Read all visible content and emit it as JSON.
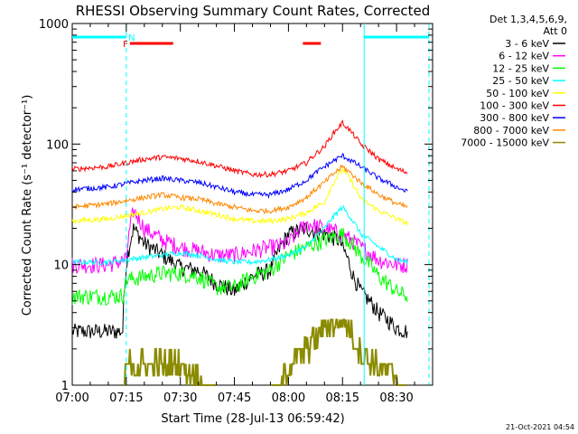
{
  "chart_data": {
    "type": "line",
    "title": "RHESSI Observing Summary Count Rates, Corrected",
    "xlabel": "Start Time (28-Jul-13 06:59:42)",
    "ylabel": "Corrected Count Rate (s⁻¹ detector⁻¹)",
    "yscale": "log",
    "xlim_minutes": [
      0,
      100
    ],
    "ylim": [
      1,
      1000
    ],
    "x_ticks": [
      {
        "minute": 0,
        "label": "07:00"
      },
      {
        "minute": 15,
        "label": "07:15"
      },
      {
        "minute": 30,
        "label": "07:30"
      },
      {
        "minute": 45,
        "label": "07:45"
      },
      {
        "minute": 60,
        "label": "08:00"
      },
      {
        "minute": 75,
        "label": "08:15"
      },
      {
        "minute": 90,
        "label": "08:30"
      }
    ],
    "y_ticks": [
      {
        "value": 1,
        "label": "1"
      },
      {
        "value": 10,
        "label": "10"
      },
      {
        "value": 100,
        "label": "100"
      },
      {
        "value": 1000,
        "label": "1000"
      }
    ],
    "legend": {
      "header1": "Det 1,3,4,5,6,9,",
      "header2": "Att 0",
      "placement": "right"
    },
    "series": [
      {
        "name": "3 - 6 keV",
        "color": "#000000",
        "minutes": [
          0,
          14,
          15,
          17,
          20,
          25,
          30,
          35,
          40,
          45,
          50,
          55,
          60,
          65,
          70,
          74,
          76,
          78,
          80,
          85,
          90,
          93
        ],
        "values": [
          2.8,
          2.8,
          10,
          20,
          15,
          12,
          9.5,
          9,
          7,
          6,
          8,
          9,
          18,
          20,
          18,
          16,
          12,
          8,
          6,
          4,
          3,
          2.8
        ]
      },
      {
        "name": "6 - 12 keV",
        "color": "#ff00ff",
        "minutes": [
          0,
          10,
          15,
          17,
          20,
          25,
          30,
          35,
          40,
          45,
          50,
          55,
          60,
          65,
          70,
          75,
          80,
          85,
          90,
          93
        ],
        "values": [
          10,
          10,
          11,
          28,
          20,
          16,
          14,
          13,
          12,
          12,
          13,
          14,
          15,
          22,
          20,
          18,
          14,
          11,
          10,
          10
        ]
      },
      {
        "name": "12 - 25 keV",
        "color": "#00ff00",
        "minutes": [
          0,
          14,
          15,
          20,
          25,
          30,
          35,
          40,
          45,
          50,
          55,
          60,
          65,
          70,
          75,
          80,
          85,
          90,
          93
        ],
        "values": [
          5.5,
          5.5,
          7.5,
          8,
          8.5,
          8.5,
          8,
          6.5,
          6.5,
          8,
          9,
          12,
          14,
          16,
          18,
          12,
          8,
          6,
          5.5
        ]
      },
      {
        "name": "25 - 50 keV",
        "color": "#00ffff",
        "minutes": [
          0,
          10,
          20,
          25,
          30,
          35,
          40,
          45,
          50,
          55,
          60,
          65,
          70,
          75,
          80,
          85,
          90,
          93
        ],
        "values": [
          10.5,
          10.5,
          11.5,
          12,
          12.5,
          12,
          11,
          10.5,
          10.5,
          11,
          12,
          14,
          20,
          30,
          18,
          14,
          11,
          10.5
        ]
      },
      {
        "name": "50 - 100 keV",
        "color": "#ffff00",
        "minutes": [
          0,
          10,
          20,
          25,
          30,
          35,
          40,
          45,
          50,
          55,
          60,
          65,
          70,
          75,
          80,
          85,
          90,
          93
        ],
        "values": [
          23,
          24,
          27,
          29,
          30,
          28,
          26,
          24,
          23,
          23,
          24,
          27,
          33,
          62,
          35,
          28,
          24,
          22
        ]
      },
      {
        "name": "100 - 300 keV",
        "color": "#ff0000",
        "minutes": [
          0,
          10,
          20,
          25,
          30,
          35,
          40,
          45,
          50,
          55,
          60,
          65,
          70,
          75,
          80,
          85,
          90,
          93
        ],
        "values": [
          62,
          65,
          75,
          78,
          76,
          72,
          66,
          60,
          56,
          56,
          60,
          70,
          95,
          150,
          100,
          75,
          62,
          58
        ]
      },
      {
        "name": "300 - 800 keV",
        "color": "#0000ff",
        "minutes": [
          0,
          10,
          20,
          25,
          30,
          35,
          40,
          45,
          50,
          55,
          60,
          65,
          70,
          75,
          80,
          85,
          90,
          93
        ],
        "values": [
          42,
          44,
          50,
          52,
          50,
          48,
          44,
          40,
          38,
          38,
          42,
          50,
          65,
          80,
          65,
          52,
          44,
          40
        ]
      },
      {
        "name": "800 - 7000 keV",
        "color": "#ff8800",
        "minutes": [
          0,
          10,
          20,
          25,
          30,
          35,
          40,
          45,
          50,
          55,
          60,
          65,
          70,
          75,
          80,
          85,
          90,
          93
        ],
        "values": [
          30,
          32,
          36,
          38,
          36,
          35,
          32,
          30,
          28,
          28,
          30,
          36,
          48,
          65,
          48,
          38,
          32,
          30
        ]
      },
      {
        "name": "7000 - 15000 keV",
        "color": "#8b8b00",
        "minutes": [
          0,
          14,
          15,
          20,
          25,
          30,
          35,
          40,
          45,
          50,
          55,
          60,
          65,
          70,
          75,
          80,
          85,
          90,
          93
        ],
        "values": [
          0,
          0,
          1.5,
          1.5,
          1.5,
          1.5,
          1.2,
          0,
          0,
          0,
          0,
          1.5,
          2,
          3,
          3.5,
          2,
          1.4,
          1.2,
          0
        ]
      }
    ],
    "intervals": [
      {
        "name": "night",
        "label": "N",
        "color": "#00ffff",
        "start": 0,
        "end": 15,
        "level": "top"
      },
      {
        "name": "night",
        "label": "",
        "color": "#00ffff",
        "start": 81,
        "end": 99,
        "level": "top"
      },
      {
        "name": "flare",
        "label": "F",
        "color": "#ff0000",
        "start": 16,
        "end": 28,
        "level": "lower"
      },
      {
        "name": "flare",
        "label": "",
        "color": "#ff0000",
        "start": 64,
        "end": 69,
        "level": "lower"
      }
    ],
    "vlines_dashed": [
      15,
      99
    ],
    "vlines_solid": [
      81
    ]
  },
  "footer": {
    "timestamp": "21-Oct-2021 04:54"
  }
}
